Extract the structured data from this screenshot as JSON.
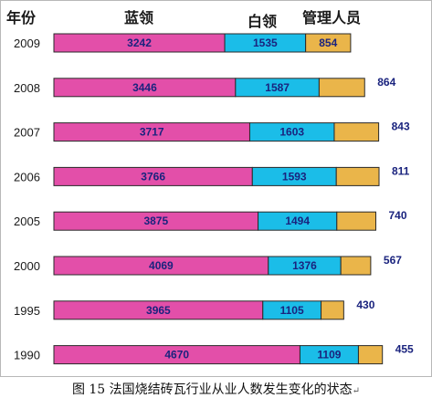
{
  "caption": "图 15 法国烧结砖瓦行业从业人数发生变化的状态",
  "caption_mark": "↵",
  "colors": {
    "blue_collar": "#e34fa9",
    "white_collar": "#1bbde8",
    "management": "#eab54a",
    "outline": "#2a2a2a",
    "label": "#1a237e"
  },
  "chart_data": {
    "type": "bar",
    "orientation": "horizontal",
    "stacked": true,
    "title": "",
    "xlabel": "",
    "ylabel": "年份",
    "categories": [
      "2009",
      "2008",
      "2007",
      "2006",
      "2005",
      "2000",
      "1995",
      "1990"
    ],
    "series": [
      {
        "name": "蓝领",
        "values": [
          3242,
          3446,
          3717,
          3766,
          3875,
          4069,
          3965,
          4670
        ]
      },
      {
        "name": "白领",
        "values": [
          1535,
          1587,
          1603,
          1593,
          1494,
          1376,
          1105,
          1109
        ]
      },
      {
        "name": "管理人员",
        "values": [
          854,
          864,
          843,
          811,
          740,
          567,
          430,
          455
        ]
      }
    ],
    "management_label_inside": [
      true,
      false,
      false,
      false,
      false,
      false,
      false,
      false
    ],
    "grid": false,
    "legend": "top (column headers)"
  }
}
